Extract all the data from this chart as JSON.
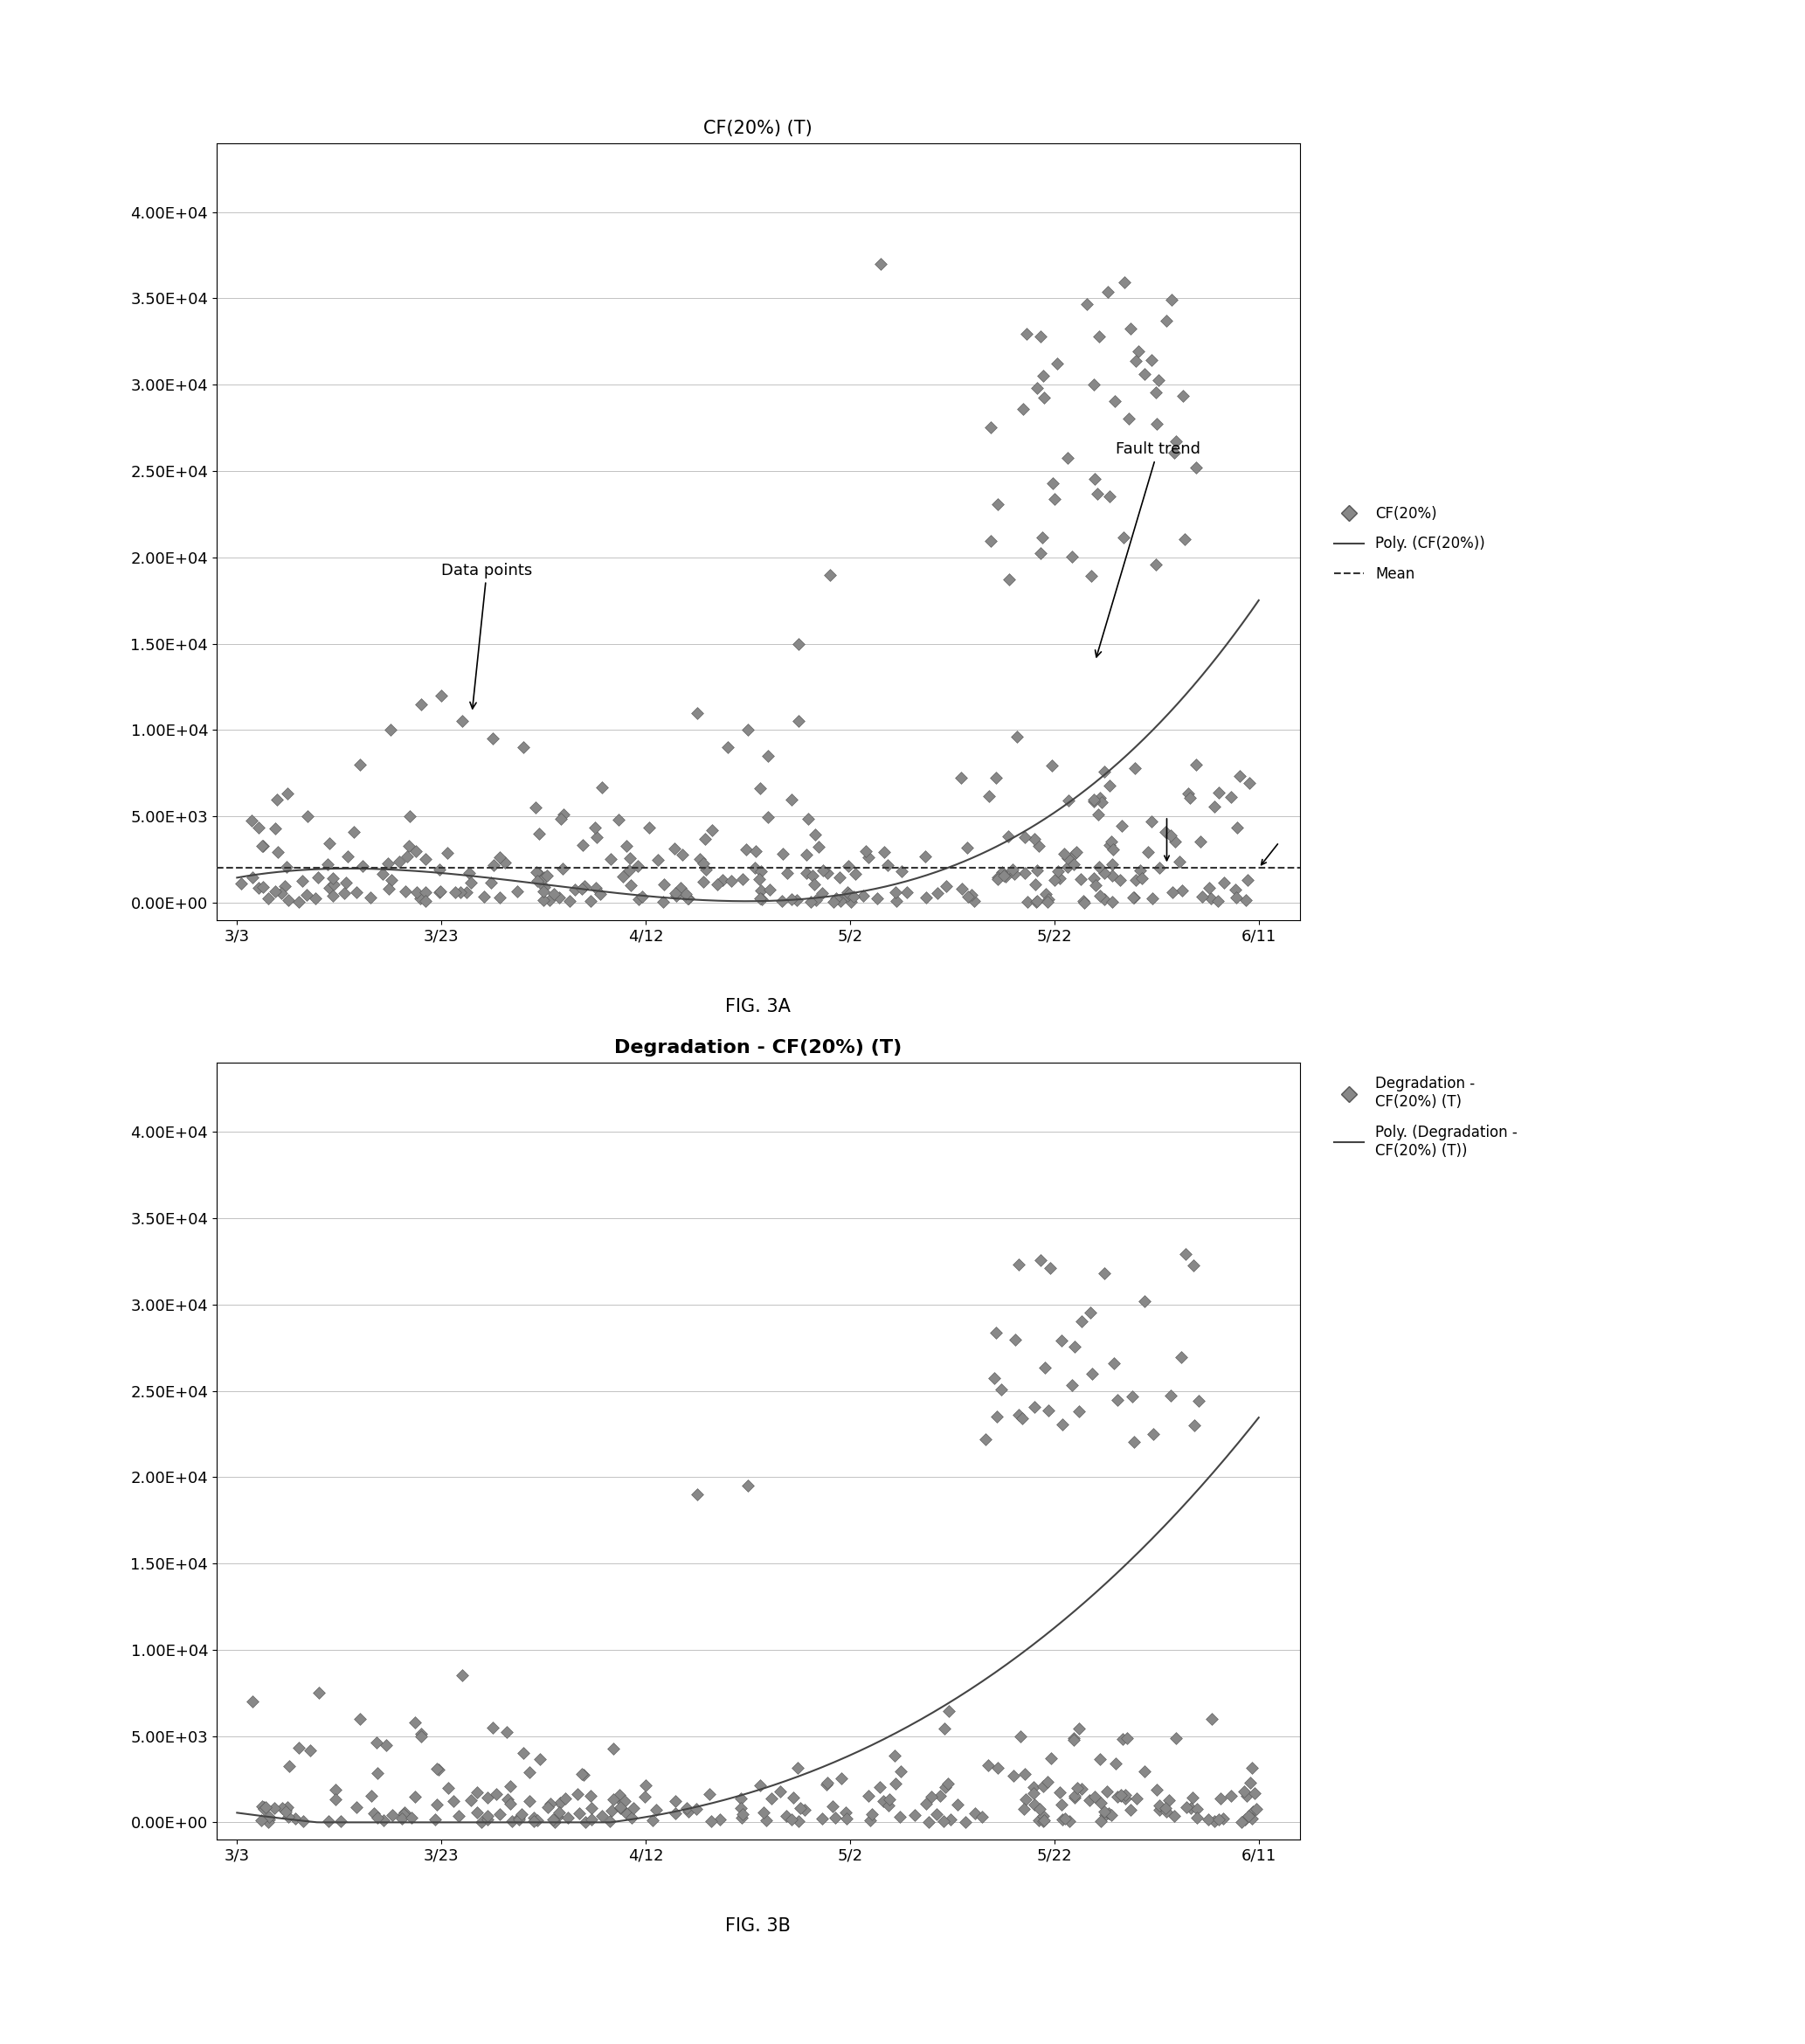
{
  "fig3a_title": "CF(20%) (T)",
  "fig3b_title": "Degradation - CF(20%) (T)",
  "fig3a_caption": "FIG. 3A",
  "fig3b_caption": "FIG. 3B",
  "x_tick_labels": [
    "3/3",
    "3/23",
    "4/12",
    "5/2",
    "5/22",
    "6/11"
  ],
  "ytick_labels": [
    "0.00E+00",
    "5.00E+03",
    "1.00E+04",
    "1.50E+04",
    "2.00E+04",
    "2.50E+04",
    "3.00E+04",
    "3.50E+04",
    "4.00E+04"
  ],
  "yticks": [
    0,
    5000,
    10000,
    15000,
    20000,
    25000,
    30000,
    35000,
    40000
  ],
  "scatter_color": "#888888",
  "scatter_edge_color": "#555555",
  "poly_color": "#444444",
  "mean_dash_color": "#333333",
  "background_color": "#ffffff",
  "grid_color": "#aaaaaa",
  "marker": "D",
  "marker_size": 5,
  "tick_fontsize": 13,
  "title_fontsize_3a": 15,
  "title_fontsize_3b": 16,
  "legend_fontsize": 12,
  "annotation_fontsize": 13,
  "caption_fontsize": 15
}
